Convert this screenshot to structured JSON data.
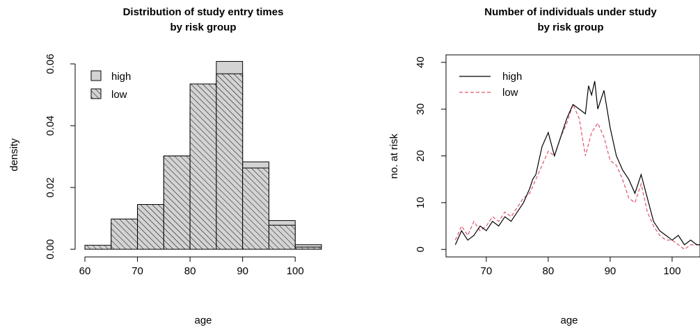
{
  "chart_data": [
    {
      "type": "bar",
      "title": [
        "Distribution of study entry times",
        "by risk group"
      ],
      "xlabel": "age",
      "ylabel": "density",
      "xlim": [
        60,
        105
      ],
      "ylim": [
        0,
        0.06
      ],
      "xticks": [
        "60",
        "70",
        "80",
        "90",
        "100"
      ],
      "yticks": [
        "0.00",
        "0.02",
        "0.04",
        "0.06"
      ],
      "bin_edges": [
        60,
        65,
        70,
        75,
        80,
        85,
        90,
        95,
        100,
        105
      ],
      "series": [
        {
          "name": "high",
          "fill": "solid-gray",
          "values": [
            0.0005,
            0.0084,
            0.0142,
            0.0302,
            0.0458,
            0.0608,
            0.0283,
            0.0093,
            0.0015
          ]
        },
        {
          "name": "low",
          "fill": "hatched",
          "values": [
            0.0013,
            0.0098,
            0.0145,
            0.0302,
            0.0535,
            0.0568,
            0.0263,
            0.0078,
            0.0007
          ]
        }
      ],
      "legend_position": "top-left",
      "grid": false
    },
    {
      "type": "line",
      "title": [
        "Number of individuals under study",
        "by risk group"
      ],
      "xlabel": "age",
      "ylabel": "no. at risk",
      "xlim": [
        63.5,
        104.5
      ],
      "ylim": [
        -1.6,
        41.6
      ],
      "xticks": [
        "70",
        "80",
        "90",
        "100"
      ],
      "yticks": [
        "0",
        "10",
        "20",
        "30",
        "40"
      ],
      "legend_position": "top-left",
      "grid": false,
      "series": [
        {
          "name": "high",
          "color": "#000000",
          "style": "solid",
          "x": [
            65.0,
            66.0,
            67.0,
            68.0,
            69.0,
            70.0,
            71.0,
            72.0,
            73.0,
            74.0,
            75.0,
            76.0,
            77.0,
            77.5,
            78.0,
            79.0,
            80.0,
            81.0,
            82.0,
            83.0,
            84.0,
            85.0,
            86.0,
            86.5,
            87.0,
            87.5,
            88.0,
            89.0,
            90.0,
            91.0,
            92.0,
            93.0,
            94.0,
            95.0,
            96.0,
            97.0,
            98.0,
            99.0,
            100.0,
            101.0,
            102.0,
            103.0,
            104.0,
            104.5
          ],
          "y": [
            1,
            4,
            2,
            3,
            5,
            4,
            6,
            5,
            7,
            6,
            8,
            10,
            13,
            15,
            16,
            22,
            25,
            20,
            24,
            28,
            31,
            30,
            29,
            35,
            33,
            36,
            30,
            34,
            26,
            20,
            17,
            15,
            12,
            16,
            11,
            6,
            4,
            3,
            2,
            3,
            1,
            2,
            1,
            1
          ]
        },
        {
          "name": "low",
          "color": "#DF536B",
          "style": "dashed",
          "x": [
            65.0,
            66.0,
            67.0,
            68.0,
            69.0,
            70.0,
            71.0,
            72.0,
            73.0,
            74.0,
            75.0,
            76.0,
            77.0,
            78.0,
            79.0,
            80.0,
            81.0,
            82.0,
            83.0,
            84.0,
            85.0,
            86.0,
            87.0,
            88.0,
            89.0,
            90.0,
            91.0,
            92.0,
            93.0,
            94.0,
            95.0,
            96.0,
            97.0,
            98.0,
            99.0,
            100.0,
            101.0,
            102.0,
            103.0,
            104.0,
            104.5
          ],
          "y": [
            2,
            5,
            3,
            6,
            4,
            5,
            7,
            6,
            8,
            7,
            9,
            11,
            12,
            15,
            18,
            21,
            20,
            24,
            27,
            31,
            28,
            20,
            25,
            27,
            24,
            19,
            18,
            15,
            11,
            10,
            14,
            8,
            5,
            3,
            2,
            2,
            1,
            0,
            1,
            1,
            1
          ]
        }
      ]
    }
  ]
}
